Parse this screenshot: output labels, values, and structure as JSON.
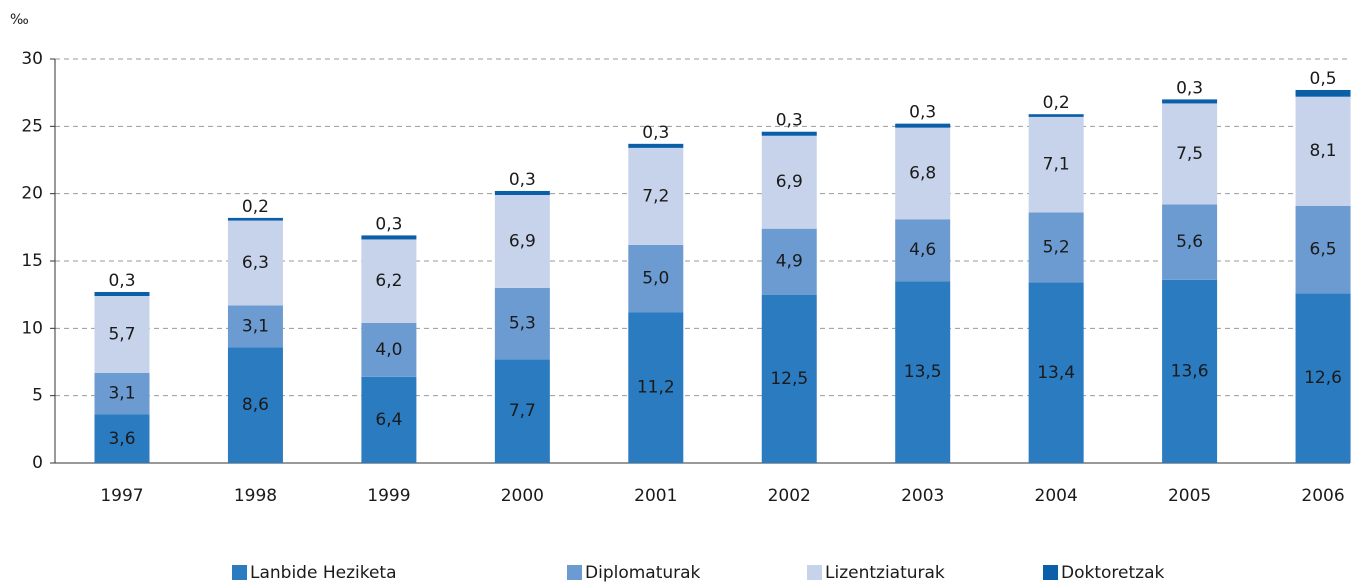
{
  "chart_data": {
    "type": "bar",
    "stacked": true,
    "y_label": "‰",
    "categories": [
      "1997",
      "1998",
      "1999",
      "2000",
      "2001",
      "2002",
      "2003",
      "2004",
      "2005",
      "2006"
    ],
    "series": [
      {
        "name": "Lanbide Heziketa",
        "color": "#2b7bc1",
        "values": [
          3.6,
          8.6,
          6.4,
          7.7,
          11.2,
          12.5,
          13.5,
          13.4,
          13.6,
          12.6
        ],
        "value_labels": [
          "3,6",
          "8,6",
          "6,4",
          "7,7",
          "11,2",
          "12,5",
          "13,5",
          "13,4",
          "13,6",
          "12,6"
        ]
      },
      {
        "name": "Diplomaturak",
        "color": "#6c9bd2",
        "values": [
          3.1,
          3.1,
          4,
          5.3,
          5,
          4.9,
          4.6,
          5.2,
          5.6,
          6.5
        ],
        "value_labels": [
          "3,1",
          "3,1",
          "4,0",
          "5,3",
          "5,0",
          "4,9",
          "4,6",
          "5,2",
          "5,6",
          "6,5"
        ]
      },
      {
        "name": "Lizentziaturak",
        "color": "#c7d3eb",
        "values": [
          5.7,
          6.3,
          6.2,
          6.9,
          7.2,
          6.9,
          6.8,
          7.1,
          7.5,
          8.1
        ],
        "value_labels": [
          "5,7",
          "6,3",
          "6,2",
          "6,9",
          "7,2",
          "6,9",
          "6,8",
          "7,1",
          "7,5",
          "8,1"
        ]
      },
      {
        "name": "Doktoretzak",
        "color": "#0b5fa8",
        "values": [
          0.3,
          0.2,
          0.3,
          0.3,
          0.3,
          0.3,
          0.3,
          0.2,
          0.3,
          0.5
        ],
        "value_labels": [
          "0,3",
          "0,2",
          "0,3",
          "0,3",
          "0,3",
          "0,3",
          "0,3",
          "0,2",
          "0,3",
          "0,5"
        ]
      }
    ],
    "ylim": [
      0,
      30
    ],
    "yticks": [
      0,
      5,
      10,
      15,
      20,
      25,
      30
    ],
    "grid": true
  }
}
